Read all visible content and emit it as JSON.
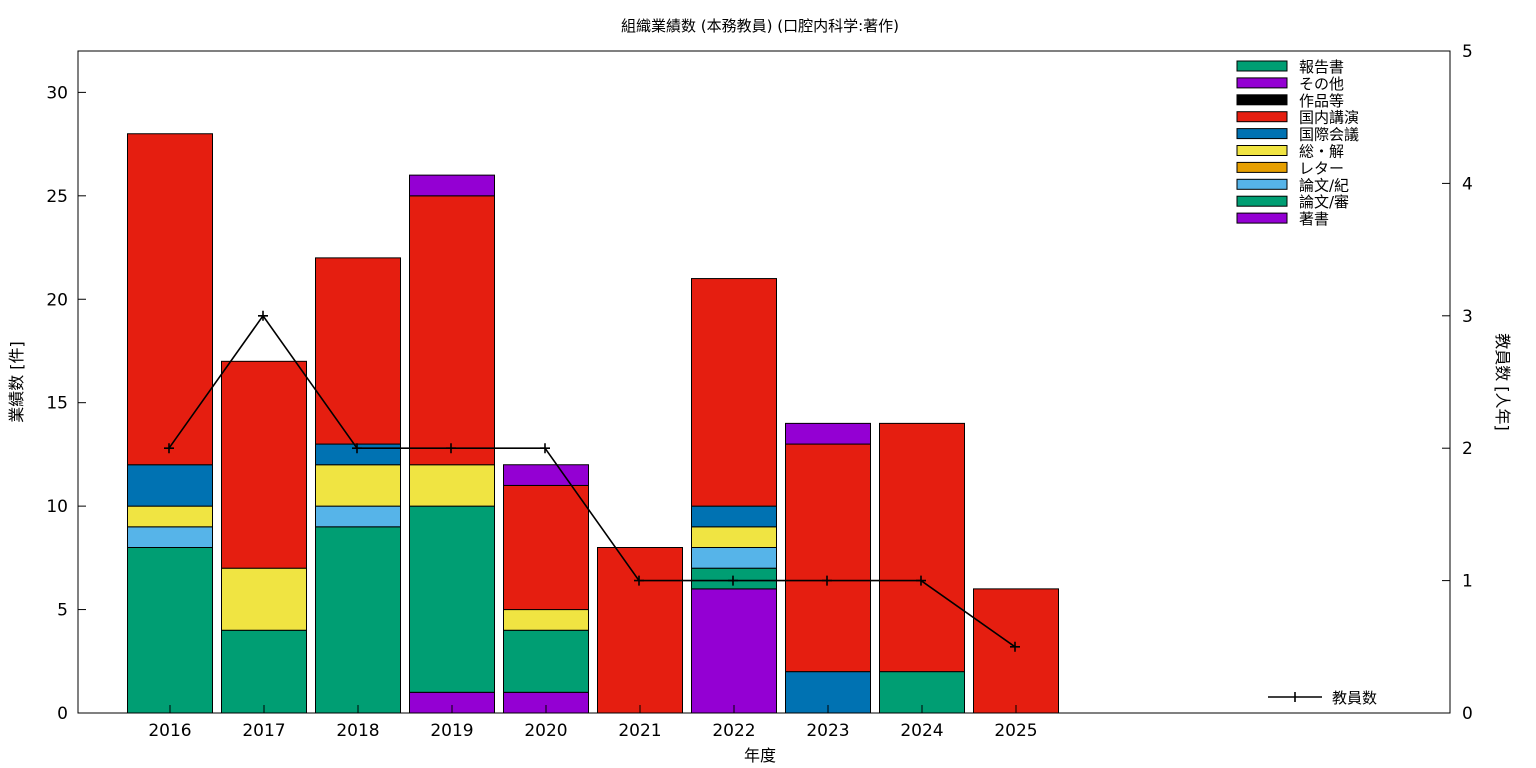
{
  "chart_data": {
    "type": "bar",
    "title": "組織業績数 (本務教員) (口腔内科学:著作)",
    "xlabel": "年度",
    "ylabel": "業績数 [件]",
    "y2label": "教員数 [人年]",
    "categories": [
      "2016",
      "2017",
      "2018",
      "2019",
      "2020",
      "2021",
      "2022",
      "2023",
      "2024",
      "2025"
    ],
    "ylim": [
      0,
      32
    ],
    "yticks": [
      0,
      5,
      10,
      15,
      20,
      25,
      30
    ],
    "y2lim": [
      0,
      5
    ],
    "y2ticks": [
      0,
      1,
      2,
      3,
      4,
      5
    ],
    "stacked": true,
    "grid": false,
    "legend_position": "top-right",
    "series": [
      {
        "name": "著書",
        "color": "#9400d3",
        "values": [
          0,
          0,
          0,
          1,
          1,
          0,
          6,
          0,
          0,
          0
        ]
      },
      {
        "name": "論文/審",
        "color": "#009e73",
        "values": [
          8,
          4,
          9,
          9,
          3,
          0,
          1,
          0,
          2,
          0
        ]
      },
      {
        "name": "論文/紀",
        "color": "#56b4e9",
        "values": [
          1,
          0,
          1,
          0,
          0,
          0,
          1,
          0,
          0,
          0
        ]
      },
      {
        "name": "レター",
        "color": "#e69f00",
        "values": [
          0,
          0,
          0,
          0,
          0,
          0,
          0,
          0,
          0,
          0
        ]
      },
      {
        "name": "総・解",
        "color": "#f0e442",
        "values": [
          1,
          3,
          2,
          2,
          1,
          0,
          1,
          0,
          0,
          0
        ]
      },
      {
        "name": "国際会議",
        "color": "#0072b2",
        "values": [
          2,
          0,
          1,
          0,
          0,
          0,
          1,
          2,
          0,
          0
        ]
      },
      {
        "name": "国内講演",
        "color": "#e51e10",
        "values": [
          16,
          10,
          9,
          13,
          6,
          8,
          11,
          11,
          12,
          6
        ]
      },
      {
        "name": "作品等",
        "color": "#000000",
        "values": [
          0,
          0,
          0,
          0,
          0,
          0,
          0,
          0,
          0,
          0
        ]
      },
      {
        "name": "その他",
        "color": "#9400d3",
        "values": [
          0,
          0,
          0,
          1,
          1,
          0,
          0,
          1,
          0,
          0
        ]
      },
      {
        "name": "報告書",
        "color": "#009e73",
        "values": [
          0,
          0,
          0,
          0,
          0,
          0,
          0,
          0,
          0,
          0
        ]
      }
    ],
    "line_series": {
      "name": "教員数",
      "color": "#000000",
      "axis": "y2",
      "values": [
        2,
        3,
        2,
        2,
        2,
        1,
        1,
        1,
        1,
        0.5
      ]
    }
  }
}
